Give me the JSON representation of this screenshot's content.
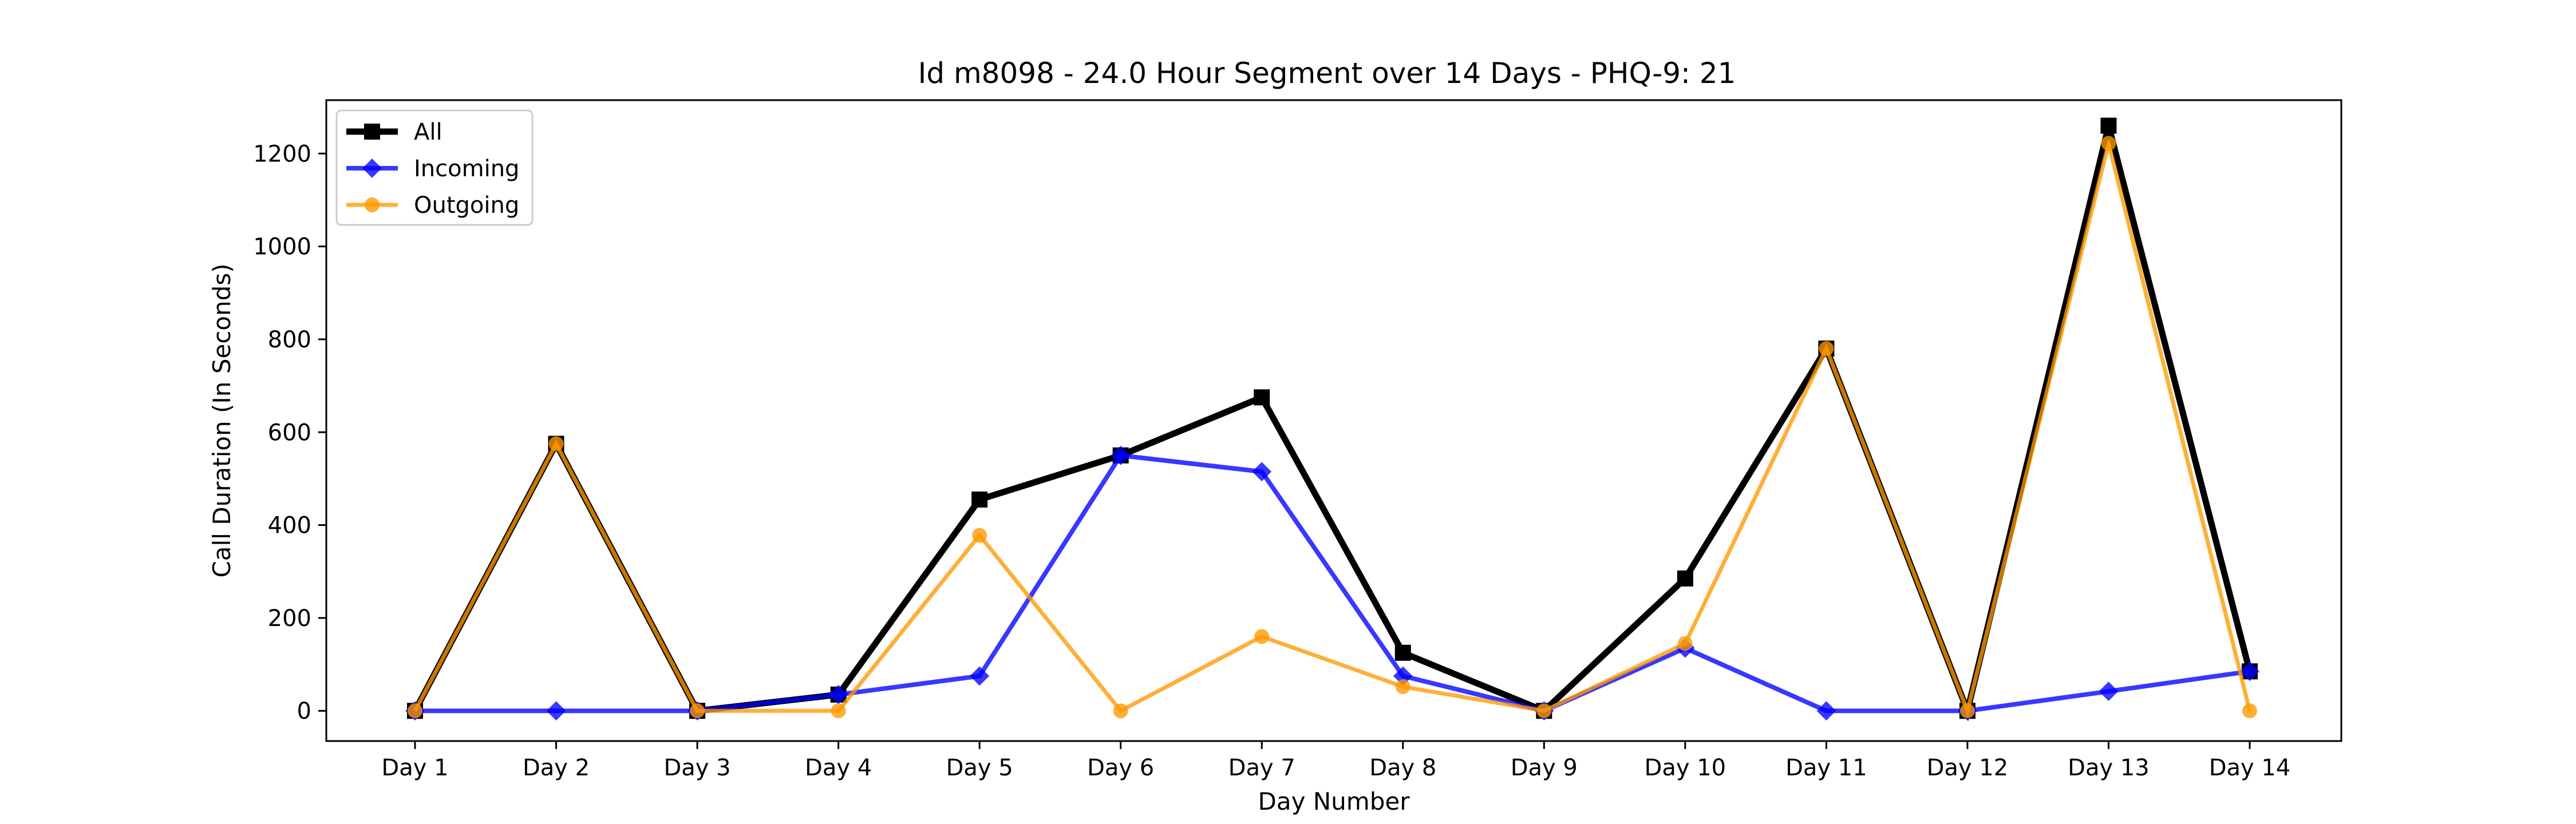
{
  "chart_data": {
    "type": "line",
    "title": "Id m8098 - 24.0 Hour Segment over 14 Days - PHQ-9: 21",
    "xlabel": "Day Number",
    "ylabel": "Call Duration (In Seconds)",
    "categories": [
      "Day 1",
      "Day 2",
      "Day 3",
      "Day 4",
      "Day 5",
      "Day 6",
      "Day 7",
      "Day 8",
      "Day 9",
      "Day 10",
      "Day 11",
      "Day 12",
      "Day 13",
      "Day 14"
    ],
    "ylim": [
      -65,
      1315
    ],
    "yticks": [
      0,
      200,
      400,
      600,
      800,
      1000,
      1200
    ],
    "grid": false,
    "legend_position": "top-left",
    "series": [
      {
        "name": "All",
        "color": "#000000",
        "marker": "square",
        "values": [
          0,
          575,
          0,
          35,
          455,
          550,
          675,
          125,
          0,
          285,
          780,
          0,
          1260,
          85
        ]
      },
      {
        "name": "Incoming",
        "color": "#0000ff",
        "marker": "diamond",
        "values": [
          0,
          0,
          0,
          35,
          75,
          550,
          515,
          75,
          0,
          135,
          0,
          0,
          42,
          85
        ]
      },
      {
        "name": "Outgoing",
        "color": "#ff9900",
        "marker": "circle",
        "values": [
          0,
          575,
          0,
          0,
          378,
          0,
          160,
          52,
          0,
          145,
          780,
          0,
          1222,
          0
        ]
      }
    ]
  }
}
